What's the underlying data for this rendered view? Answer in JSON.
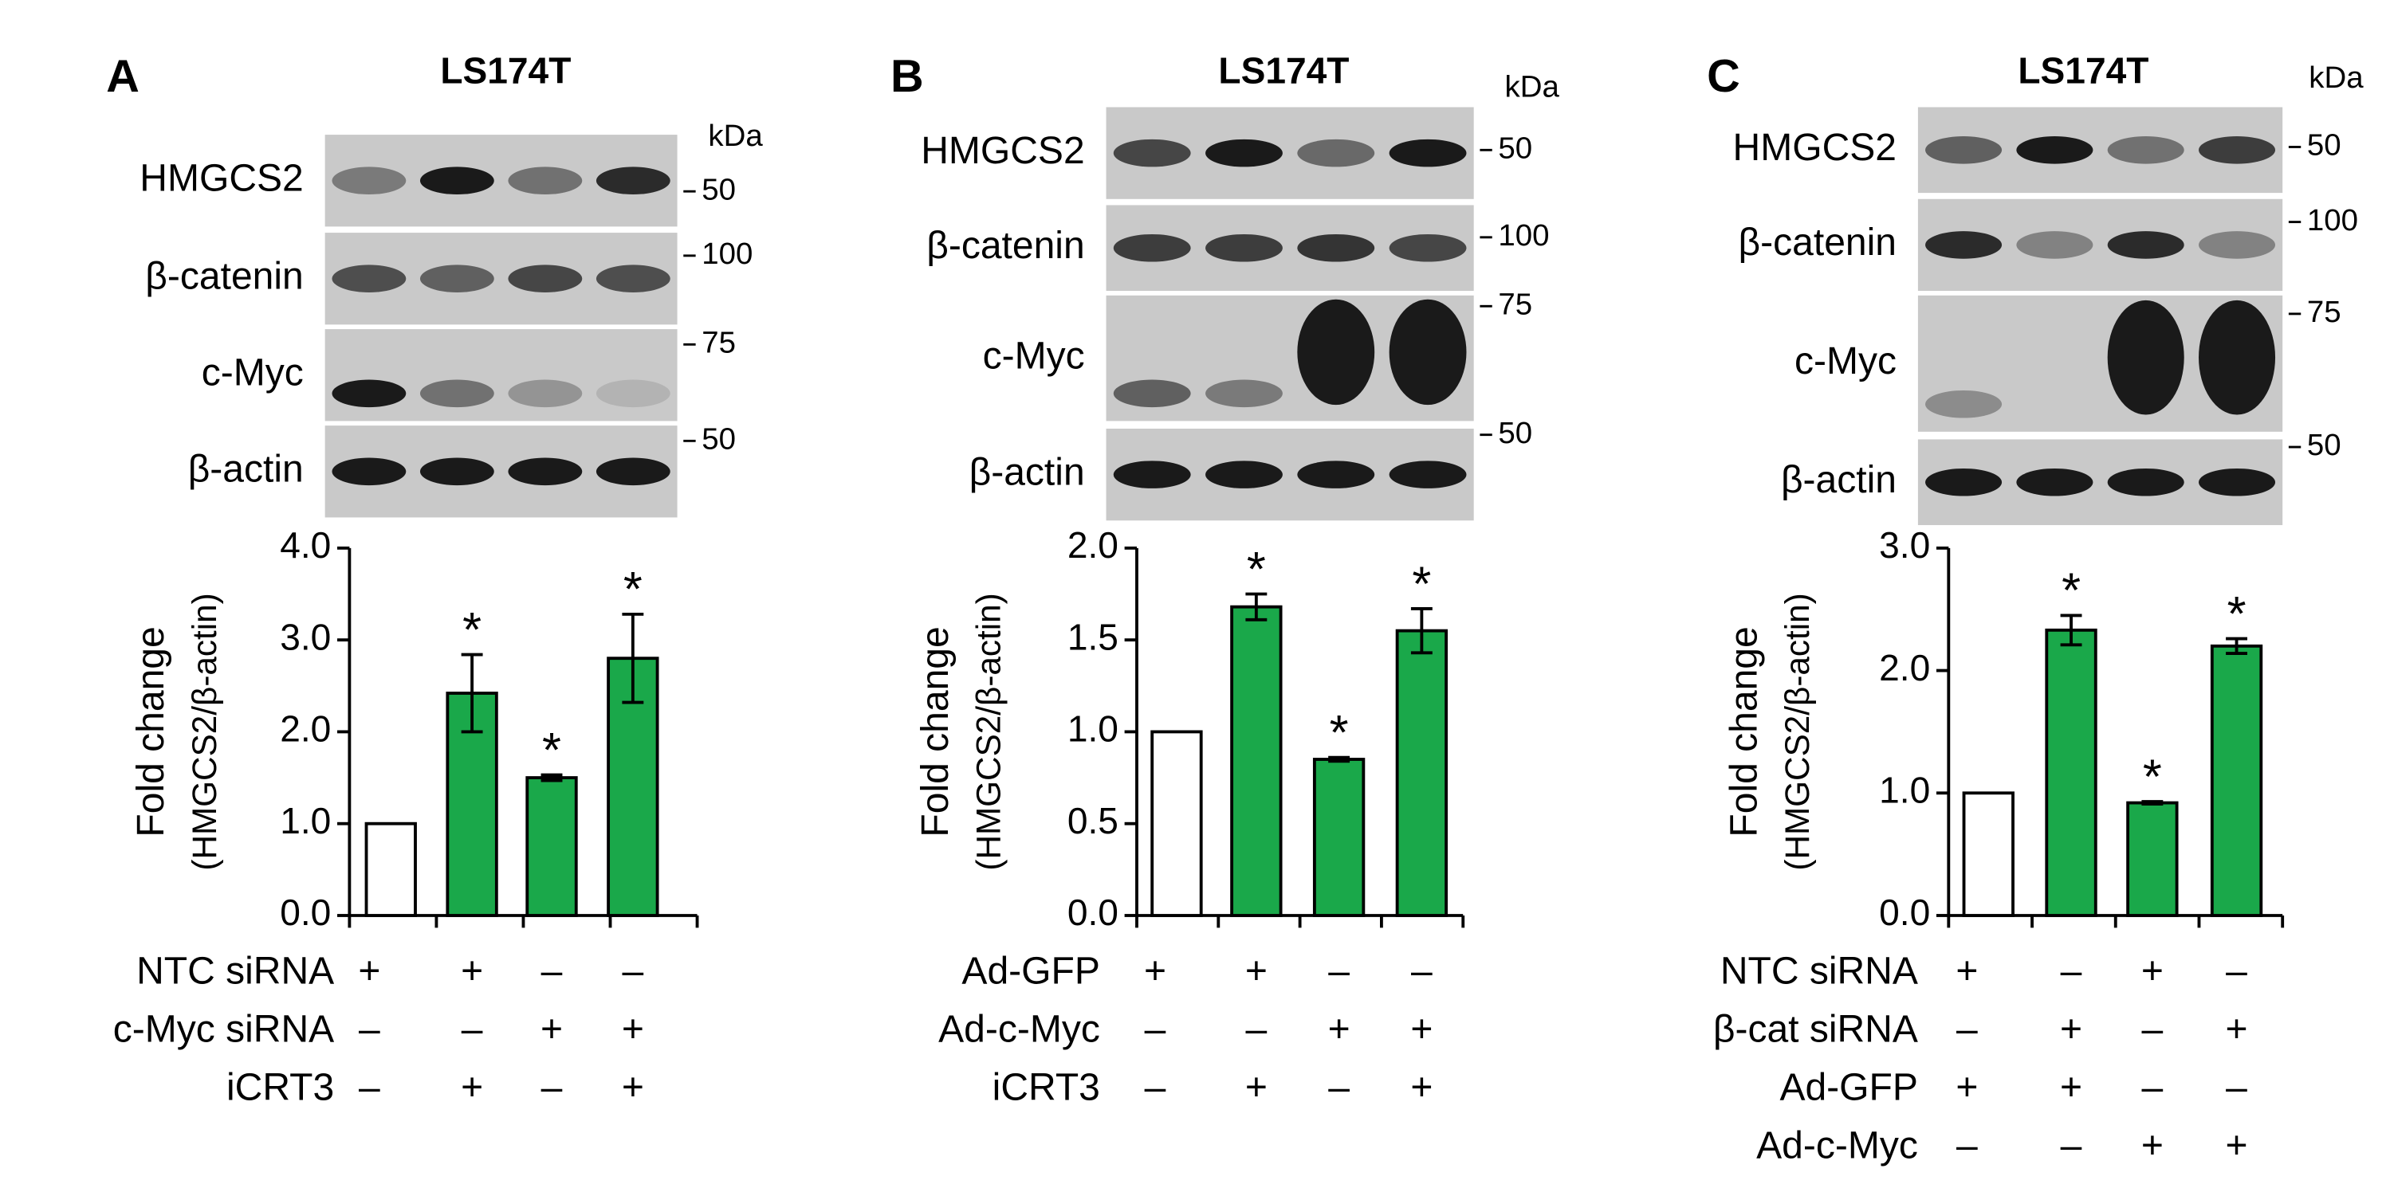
{
  "chart_data": [
    {
      "type": "bar",
      "panel_label": "A",
      "title": "LS174T",
      "kda_label": "kDa",
      "blots": [
        {
          "label": "HMGCS2",
          "markers": [
            "50"
          ]
        },
        {
          "label": "β-catenin",
          "markers": [
            "100"
          ]
        },
        {
          "label": "c-Myc",
          "markers": [
            "75"
          ]
        },
        {
          "label": "β-actin",
          "markers": [
            "50"
          ]
        }
      ],
      "ylabel": [
        "Fold change",
        "(HMGCS2/β-actin)"
      ],
      "values": [
        1.0,
        2.42,
        1.5,
        2.8
      ],
      "errors": [
        null,
        0.42,
        0.03,
        0.48
      ],
      "colors": [
        "#ffffff",
        "#1aa84a",
        "#1aa84a",
        "#1aa84a"
      ],
      "significance": [
        null,
        "*",
        "*",
        "*"
      ],
      "ylim": [
        0,
        4
      ],
      "yticks": [
        {
          "value": 0,
          "label": "0.0"
        },
        {
          "value": 1,
          "label": "1.0"
        },
        {
          "value": 2,
          "label": "2.0"
        },
        {
          "value": 3,
          "label": "3.0"
        },
        {
          "value": 4,
          "label": "4.0"
        }
      ],
      "conditions": [
        {
          "name": "NTC siRNA",
          "signs": [
            "+",
            "+",
            "–",
            "–"
          ]
        },
        {
          "name": "c-Myc siRNA",
          "signs": [
            "–",
            "–",
            "+",
            "+"
          ]
        },
        {
          "name": "iCRT3",
          "signs": [
            "–",
            "+",
            "–",
            "+"
          ]
        }
      ]
    },
    {
      "type": "bar",
      "panel_label": "B",
      "title": "LS174T",
      "kda_label": "kDa",
      "blots": [
        {
          "label": "HMGCS2",
          "markers": [
            "50"
          ]
        },
        {
          "label": "β-catenin",
          "markers": [
            "100"
          ]
        },
        {
          "label": "c-Myc",
          "markers": [
            "75"
          ]
        },
        {
          "label": "β-actin",
          "markers": [
            "50"
          ]
        }
      ],
      "ylabel": [
        "Fold change",
        "(HMGCS2/β-actin)"
      ],
      "values": [
        1.0,
        1.68,
        0.85,
        1.55
      ],
      "errors": [
        null,
        0.07,
        0.01,
        0.12
      ],
      "colors": [
        "#ffffff",
        "#1aa84a",
        "#1aa84a",
        "#1aa84a"
      ],
      "significance": [
        null,
        "*",
        "*",
        "*"
      ],
      "ylim": [
        0,
        2
      ],
      "yticks": [
        {
          "value": 0,
          "label": "0.0"
        },
        0.5,
        {
          "value": 1,
          "label": "1.0"
        },
        1.5,
        {
          "value": 2,
          "label": "2.0"
        }
      ],
      "conditions": [
        {
          "name": "Ad-GFP",
          "signs": [
            "+",
            "+",
            "–",
            "–"
          ]
        },
        {
          "name": "Ad-c-Myc",
          "signs": [
            "–",
            "–",
            "+",
            "+"
          ]
        },
        {
          "name": "iCRT3",
          "signs": [
            "–",
            "+",
            "–",
            "+"
          ]
        }
      ]
    },
    {
      "type": "bar",
      "panel_label": "C",
      "title": "LS174T",
      "kda_label": "kDa",
      "blots": [
        {
          "label": "HMGCS2",
          "markers": [
            "50"
          ]
        },
        {
          "label": "β-catenin",
          "markers": [
            "100"
          ]
        },
        {
          "label": "c-Myc",
          "markers": [
            "75"
          ]
        },
        {
          "label": "β-actin",
          "markers": [
            "50"
          ]
        }
      ],
      "ylabel": [
        "Fold change",
        "(HMGCS2/β-actin)"
      ],
      "values": [
        1.0,
        2.33,
        0.92,
        2.2
      ],
      "errors": [
        null,
        0.12,
        0.01,
        0.06
      ],
      "colors": [
        "#ffffff",
        "#1aa84a",
        "#1aa84a",
        "#1aa84a"
      ],
      "significance": [
        null,
        "*",
        "*",
        "*"
      ],
      "ylim": [
        0,
        3
      ],
      "yticks": [
        {
          "value": 0,
          "label": "0.0"
        },
        {
          "value": 1,
          "label": "1.0"
        },
        {
          "value": 2,
          "label": "2.0"
        },
        {
          "value": 3,
          "label": "3.0"
        }
      ],
      "conditions": [
        {
          "name": "NTC siRNA",
          "signs": [
            "+",
            "–",
            "+",
            "–"
          ]
        },
        {
          "name": "β-cat siRNA",
          "signs": [
            "–",
            "+",
            "–",
            "+"
          ]
        },
        {
          "name": "Ad-GFP",
          "signs": [
            "+",
            "+",
            "–",
            "–"
          ]
        },
        {
          "name": "Ad-c-Myc",
          "signs": [
            "–",
            "–",
            "+",
            "+"
          ]
        }
      ]
    }
  ]
}
